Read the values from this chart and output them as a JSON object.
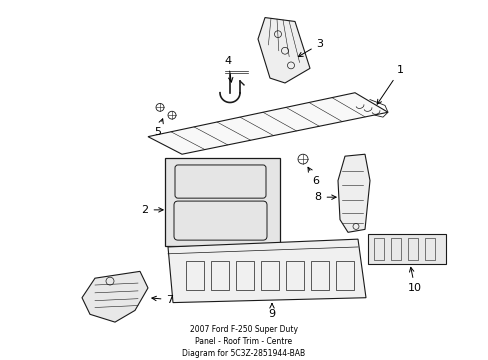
{
  "title": "2007 Ford F-250 Super Duty\nPanel - Roof Trim - Centre\nDiagram for 5C3Z-2851944-BAB",
  "background_color": "#ffffff",
  "line_color": "#1a1a1a",
  "label_color": "#000000",
  "fig_width": 4.89,
  "fig_height": 3.6,
  "dpi": 100
}
